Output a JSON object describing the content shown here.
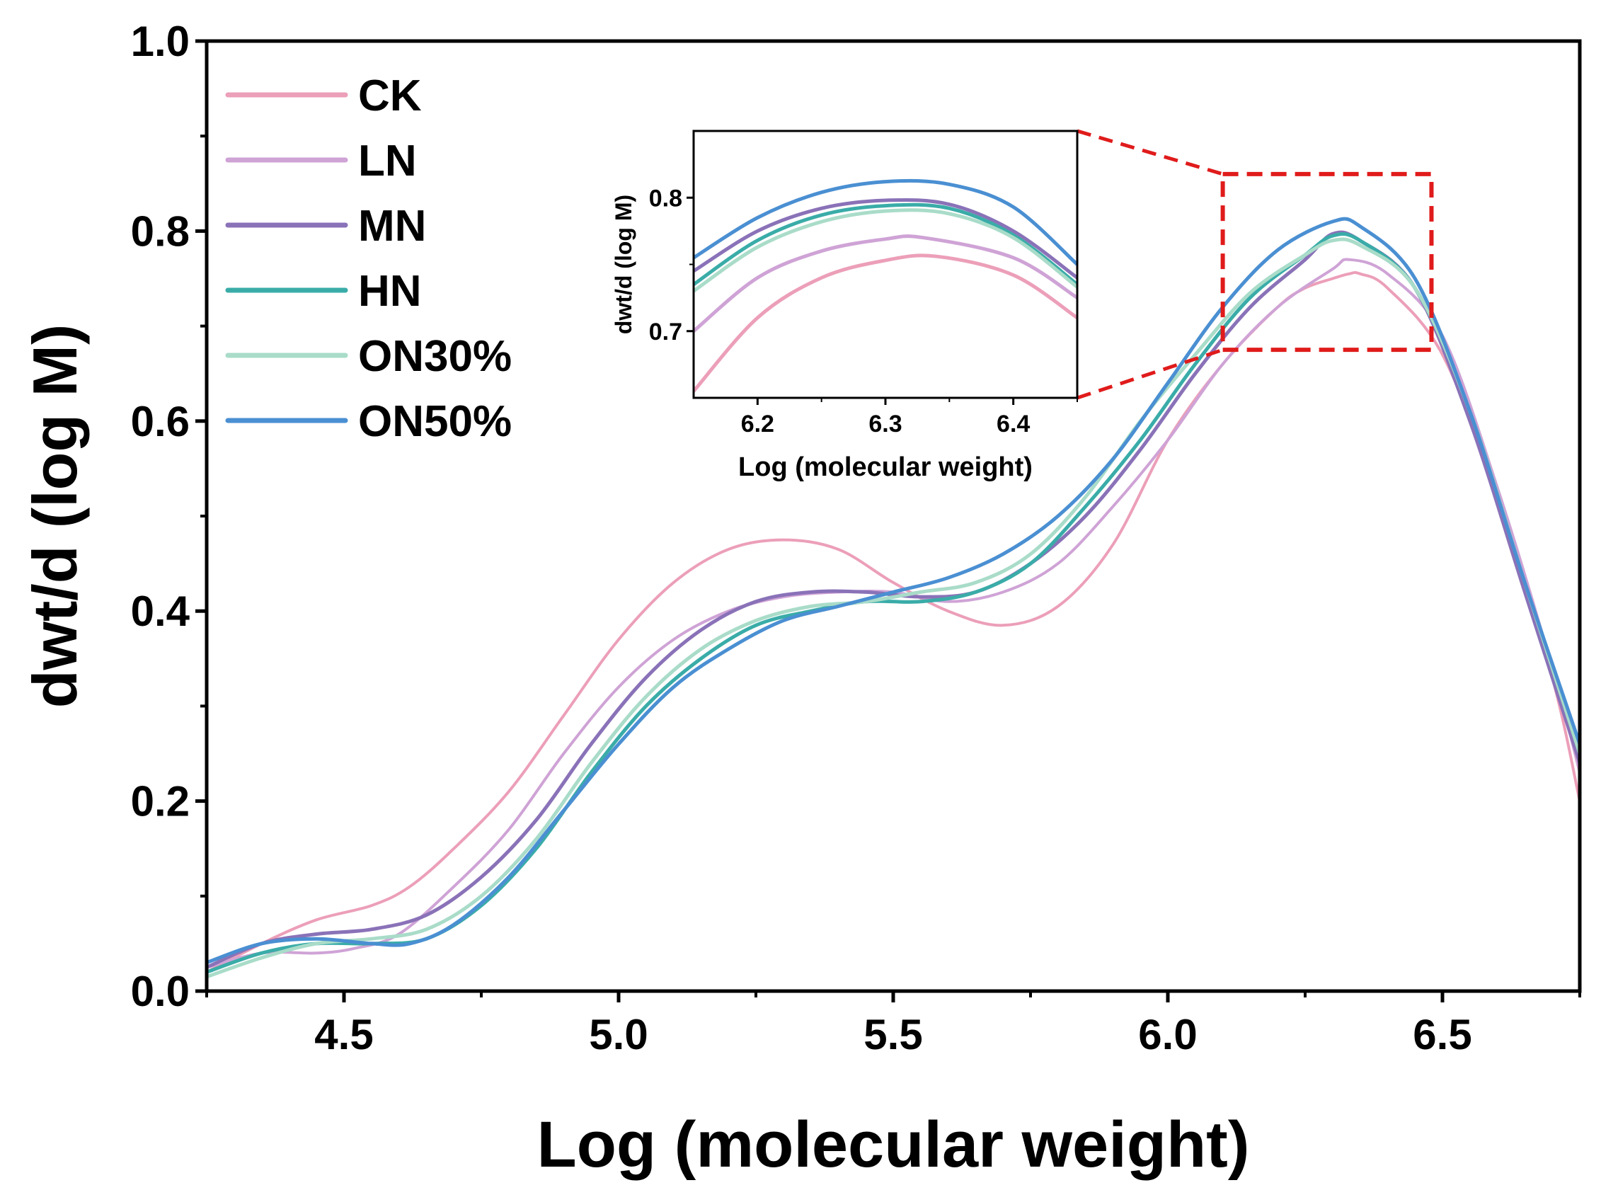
{
  "chart_data": {
    "type": "line",
    "title": "",
    "xlabel": "Log (molecular weight)",
    "ylabel": "dwt/d (log M)",
    "xlim": [
      4.25,
      6.75
    ],
    "ylim": [
      0.0,
      1.0
    ],
    "xticks": [
      "4.5",
      "5.0",
      "5.5",
      "6.0",
      "6.5"
    ],
    "xtick_values": [
      4.5,
      5.0,
      5.5,
      6.0,
      6.5
    ],
    "yticks": [
      "0.0",
      "0.2",
      "0.4",
      "0.6",
      "0.8",
      "1.0"
    ],
    "ytick_values": [
      0.0,
      0.2,
      0.4,
      0.6,
      0.8,
      1.0
    ],
    "grid": false,
    "legend_position": "top-left",
    "series": [
      {
        "name": "CK",
        "color": "#ec9fb8",
        "width": 4,
        "points": [
          [
            4.25,
            0.02
          ],
          [
            4.35,
            0.05
          ],
          [
            4.45,
            0.075
          ],
          [
            4.55,
            0.09
          ],
          [
            4.62,
            0.11
          ],
          [
            4.7,
            0.15
          ],
          [
            4.8,
            0.21
          ],
          [
            4.9,
            0.29
          ],
          [
            5.0,
            0.37
          ],
          [
            5.1,
            0.43
          ],
          [
            5.2,
            0.465
          ],
          [
            5.3,
            0.475
          ],
          [
            5.4,
            0.465
          ],
          [
            5.5,
            0.43
          ],
          [
            5.6,
            0.4
          ],
          [
            5.7,
            0.385
          ],
          [
            5.8,
            0.405
          ],
          [
            5.9,
            0.47
          ],
          [
            6.0,
            0.58
          ],
          [
            6.1,
            0.66
          ],
          [
            6.2,
            0.72
          ],
          [
            6.25,
            0.74
          ],
          [
            6.3,
            0.75
          ],
          [
            6.33,
            0.755
          ],
          [
            6.35,
            0.755
          ],
          [
            6.4,
            0.74
          ],
          [
            6.5,
            0.67
          ],
          [
            6.6,
            0.52
          ],
          [
            6.7,
            0.33
          ],
          [
            6.75,
            0.2
          ]
        ]
      },
      {
        "name": "LN",
        "color": "#cfa3d6",
        "width": 4,
        "points": [
          [
            4.25,
            0.025
          ],
          [
            4.35,
            0.04
          ],
          [
            4.45,
            0.04
          ],
          [
            4.52,
            0.045
          ],
          [
            4.6,
            0.06
          ],
          [
            4.7,
            0.11
          ],
          [
            4.8,
            0.17
          ],
          [
            4.9,
            0.25
          ],
          [
            5.0,
            0.32
          ],
          [
            5.1,
            0.37
          ],
          [
            5.2,
            0.4
          ],
          [
            5.3,
            0.415
          ],
          [
            5.4,
            0.42
          ],
          [
            5.5,
            0.42
          ],
          [
            5.6,
            0.41
          ],
          [
            5.7,
            0.42
          ],
          [
            5.8,
            0.45
          ],
          [
            5.9,
            0.51
          ],
          [
            6.0,
            0.58
          ],
          [
            6.1,
            0.66
          ],
          [
            6.2,
            0.72
          ],
          [
            6.3,
            0.76
          ],
          [
            6.33,
            0.77
          ],
          [
            6.4,
            0.755
          ],
          [
            6.5,
            0.69
          ],
          [
            6.6,
            0.53
          ],
          [
            6.7,
            0.34
          ],
          [
            6.75,
            0.23
          ]
        ]
      },
      {
        "name": "MN",
        "color": "#8a72b8",
        "width": 5,
        "points": [
          [
            4.25,
            0.025
          ],
          [
            4.35,
            0.05
          ],
          [
            4.45,
            0.06
          ],
          [
            4.55,
            0.065
          ],
          [
            4.65,
            0.08
          ],
          [
            4.75,
            0.12
          ],
          [
            4.85,
            0.18
          ],
          [
            4.95,
            0.26
          ],
          [
            5.05,
            0.33
          ],
          [
            5.15,
            0.38
          ],
          [
            5.25,
            0.41
          ],
          [
            5.35,
            0.42
          ],
          [
            5.45,
            0.42
          ],
          [
            5.55,
            0.415
          ],
          [
            5.65,
            0.42
          ],
          [
            5.75,
            0.45
          ],
          [
            5.85,
            0.5
          ],
          [
            5.95,
            0.57
          ],
          [
            6.05,
            0.65
          ],
          [
            6.15,
            0.72
          ],
          [
            6.25,
            0.77
          ],
          [
            6.3,
            0.797
          ],
          [
            6.35,
            0.79
          ],
          [
            6.45,
            0.74
          ],
          [
            6.55,
            0.6
          ],
          [
            6.65,
            0.42
          ],
          [
            6.75,
            0.24
          ]
        ]
      },
      {
        "name": "HN",
        "color": "#3aaca8",
        "width": 5,
        "points": [
          [
            4.25,
            0.02
          ],
          [
            4.35,
            0.04
          ],
          [
            4.45,
            0.05
          ],
          [
            4.55,
            0.05
          ],
          [
            4.65,
            0.055
          ],
          [
            4.75,
            0.09
          ],
          [
            4.85,
            0.15
          ],
          [
            4.95,
            0.23
          ],
          [
            5.05,
            0.3
          ],
          [
            5.15,
            0.35
          ],
          [
            5.25,
            0.385
          ],
          [
            5.35,
            0.4
          ],
          [
            5.45,
            0.41
          ],
          [
            5.55,
            0.41
          ],
          [
            5.65,
            0.42
          ],
          [
            5.75,
            0.45
          ],
          [
            5.85,
            0.51
          ],
          [
            5.95,
            0.58
          ],
          [
            6.05,
            0.66
          ],
          [
            6.15,
            0.73
          ],
          [
            6.25,
            0.775
          ],
          [
            6.3,
            0.795
          ],
          [
            6.35,
            0.79
          ],
          [
            6.45,
            0.74
          ],
          [
            6.55,
            0.61
          ],
          [
            6.65,
            0.43
          ],
          [
            6.75,
            0.25
          ]
        ]
      },
      {
        "name": "ON30%",
        "color": "#a9dcc9",
        "width": 5,
        "points": [
          [
            4.25,
            0.015
          ],
          [
            4.35,
            0.035
          ],
          [
            4.45,
            0.05
          ],
          [
            4.55,
            0.055
          ],
          [
            4.65,
            0.065
          ],
          [
            4.75,
            0.1
          ],
          [
            4.85,
            0.16
          ],
          [
            4.95,
            0.24
          ],
          [
            5.05,
            0.31
          ],
          [
            5.15,
            0.36
          ],
          [
            5.25,
            0.39
          ],
          [
            5.35,
            0.405
          ],
          [
            5.45,
            0.41
          ],
          [
            5.55,
            0.42
          ],
          [
            5.65,
            0.43
          ],
          [
            5.75,
            0.46
          ],
          [
            5.85,
            0.52
          ],
          [
            5.95,
            0.6
          ],
          [
            6.05,
            0.67
          ],
          [
            6.15,
            0.735
          ],
          [
            6.25,
            0.775
          ],
          [
            6.3,
            0.79
          ],
          [
            6.35,
            0.785
          ],
          [
            6.45,
            0.74
          ],
          [
            6.55,
            0.61
          ],
          [
            6.65,
            0.43
          ],
          [
            6.75,
            0.25
          ]
        ]
      },
      {
        "name": "ON50%",
        "color": "#4a8fd2",
        "width": 5,
        "points": [
          [
            4.25,
            0.03
          ],
          [
            4.35,
            0.05
          ],
          [
            4.45,
            0.055
          ],
          [
            4.55,
            0.05
          ],
          [
            4.62,
            0.05
          ],
          [
            4.7,
            0.07
          ],
          [
            4.8,
            0.12
          ],
          [
            4.9,
            0.19
          ],
          [
            5.0,
            0.26
          ],
          [
            5.1,
            0.32
          ],
          [
            5.2,
            0.36
          ],
          [
            5.3,
            0.39
          ],
          [
            5.4,
            0.405
          ],
          [
            5.5,
            0.42
          ],
          [
            5.6,
            0.435
          ],
          [
            5.7,
            0.46
          ],
          [
            5.8,
            0.5
          ],
          [
            5.9,
            0.56
          ],
          [
            6.0,
            0.64
          ],
          [
            6.1,
            0.72
          ],
          [
            6.2,
            0.78
          ],
          [
            6.3,
            0.81
          ],
          [
            6.35,
            0.805
          ],
          [
            6.45,
            0.75
          ],
          [
            6.55,
            0.61
          ],
          [
            6.65,
            0.43
          ],
          [
            6.75,
            0.26
          ]
        ]
      }
    ],
    "highlight_box": {
      "xlim": [
        6.1,
        6.48
      ],
      "ylim": [
        0.675,
        0.86
      ],
      "color": "#e01b1b",
      "style": "dashed"
    },
    "inset": {
      "xlabel": "Log (molecular weight)",
      "ylabel": "dwt/d (log M)",
      "xlim": [
        6.15,
        6.45
      ],
      "ylim": [
        0.65,
        0.85
      ],
      "xticks": [
        "6.2",
        "6.3",
        "6.4"
      ],
      "xtick_values": [
        6.2,
        6.3,
        6.4
      ],
      "yticks": [
        "0.7",
        "0.8"
      ],
      "ytick_values": [
        0.7,
        0.8
      ],
      "series": [
        {
          "name": "CK",
          "points": [
            [
              6.15,
              0.655
            ],
            [
              6.2,
              0.71
            ],
            [
              6.25,
              0.74
            ],
            [
              6.3,
              0.753
            ],
            [
              6.34,
              0.756
            ],
            [
              6.4,
              0.742
            ],
            [
              6.45,
              0.71
            ]
          ]
        },
        {
          "name": "LN",
          "points": [
            [
              6.15,
              0.7
            ],
            [
              6.2,
              0.74
            ],
            [
              6.25,
              0.76
            ],
            [
              6.3,
              0.769
            ],
            [
              6.33,
              0.77
            ],
            [
              6.4,
              0.755
            ],
            [
              6.45,
              0.725
            ]
          ]
        },
        {
          "name": "MN",
          "points": [
            [
              6.15,
              0.745
            ],
            [
              6.2,
              0.775
            ],
            [
              6.25,
              0.792
            ],
            [
              6.3,
              0.798
            ],
            [
              6.35,
              0.795
            ],
            [
              6.4,
              0.775
            ],
            [
              6.45,
              0.74
            ]
          ]
        },
        {
          "name": "HN",
          "points": [
            [
              6.15,
              0.735
            ],
            [
              6.2,
              0.768
            ],
            [
              6.25,
              0.787
            ],
            [
              6.3,
              0.794
            ],
            [
              6.35,
              0.792
            ],
            [
              6.4,
              0.772
            ],
            [
              6.45,
              0.735
            ]
          ]
        },
        {
          "name": "ON30%",
          "points": [
            [
              6.15,
              0.73
            ],
            [
              6.2,
              0.763
            ],
            [
              6.25,
              0.782
            ],
            [
              6.3,
              0.79
            ],
            [
              6.35,
              0.788
            ],
            [
              6.4,
              0.77
            ],
            [
              6.45,
              0.733
            ]
          ]
        },
        {
          "name": "ON50%",
          "points": [
            [
              6.15,
              0.755
            ],
            [
              6.2,
              0.785
            ],
            [
              6.25,
              0.804
            ],
            [
              6.3,
              0.812
            ],
            [
              6.35,
              0.81
            ],
            [
              6.4,
              0.793
            ],
            [
              6.45,
              0.75
            ]
          ]
        }
      ]
    }
  }
}
